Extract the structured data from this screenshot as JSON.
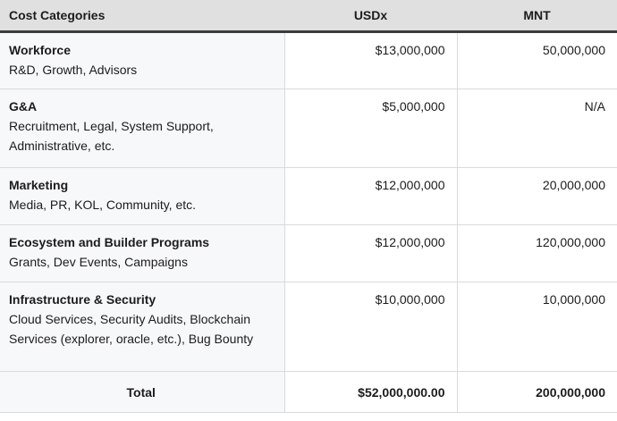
{
  "chart_data": {
    "type": "table",
    "columns": [
      "Cost Categories",
      "USDx",
      "MNT"
    ],
    "rows": [
      {
        "category": "Workforce",
        "description": "R&D, Growth, Advisors",
        "usdx": "$13,000,000",
        "mnt": "50,000,000"
      },
      {
        "category": "G&A",
        "description": "Recruitment, Legal, System Support, Administrative, etc.",
        "usdx": "$5,000,000",
        "mnt": "N/A"
      },
      {
        "category": "Marketing",
        "description": "Media, PR, KOL, Community, etc.",
        "usdx": "$12,000,000",
        "mnt": "20,000,000"
      },
      {
        "category": "Ecosystem and Builder Programs",
        "description": "Grants, Dev Events, Campaigns",
        "usdx": "$12,000,000",
        "mnt": "120,000,000"
      },
      {
        "category": "Infrastructure & Security",
        "description": "Cloud Services, Security Audits, Blockchain Services (explorer, oracle, etc.), Bug Bounty",
        "usdx": "$10,000,000",
        "mnt": "10,000,000"
      }
    ],
    "total": {
      "label": "Total",
      "usdx": "$52,000,000.00",
      "mnt": "200,000,000"
    }
  },
  "colors": {
    "header_background": "#e0e0e0",
    "header_rule": "#3c3c3c",
    "category_column_background": "#f7f8f9",
    "cell_border": "#d9dadb",
    "text": "#1c1c1e"
  }
}
